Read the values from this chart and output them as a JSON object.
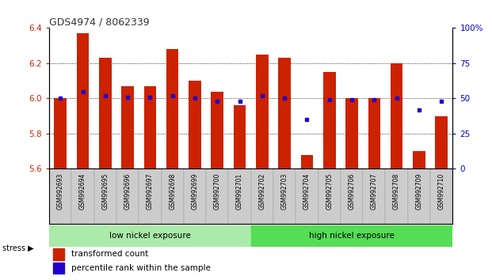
{
  "title": "GDS4974 / 8062339",
  "samples": [
    "GSM992693",
    "GSM992694",
    "GSM992695",
    "GSM992696",
    "GSM992697",
    "GSM992698",
    "GSM992699",
    "GSM992700",
    "GSM992701",
    "GSM992702",
    "GSM992703",
    "GSM992704",
    "GSM992705",
    "GSM992706",
    "GSM992707",
    "GSM992708",
    "GSM992709",
    "GSM992710"
  ],
  "transformed_count": [
    6.0,
    6.37,
    6.23,
    6.07,
    6.07,
    6.28,
    6.1,
    6.04,
    5.96,
    6.25,
    6.23,
    5.68,
    6.15,
    6.0,
    6.0,
    6.2,
    5.7,
    5.9
  ],
  "percentile_rank": [
    50,
    55,
    52,
    51,
    51,
    52,
    50,
    48,
    48,
    52,
    50,
    35,
    49,
    49,
    49,
    50,
    42,
    48
  ],
  "bar_color": "#cc2200",
  "dot_color": "#2200cc",
  "ylim_left": [
    5.6,
    6.4
  ],
  "ylim_right": [
    0,
    100
  ],
  "yticks_left": [
    5.6,
    5.8,
    6.0,
    6.2,
    6.4
  ],
  "yticks_right": [
    0,
    25,
    50,
    75,
    100
  ],
  "ytick_labels_right": [
    "0",
    "25",
    "50",
    "75",
    "100%"
  ],
  "low_nickel_label": "low nickel exposure",
  "high_nickel_label": "high nickel exposure",
  "low_nickel_count": 9,
  "high_nickel_count": 9,
  "stress_label": "stress",
  "legend_bar_label": "transformed count",
  "legend_dot_label": "percentile rank within the sample",
  "low_nickel_color": "#aaeaaa",
  "high_nickel_color": "#55dd55",
  "title_color": "#333333",
  "ycolor_left": "#cc2200",
  "ycolor_right": "#0000cc",
  "base_value": 5.6,
  "bar_width": 0.55
}
